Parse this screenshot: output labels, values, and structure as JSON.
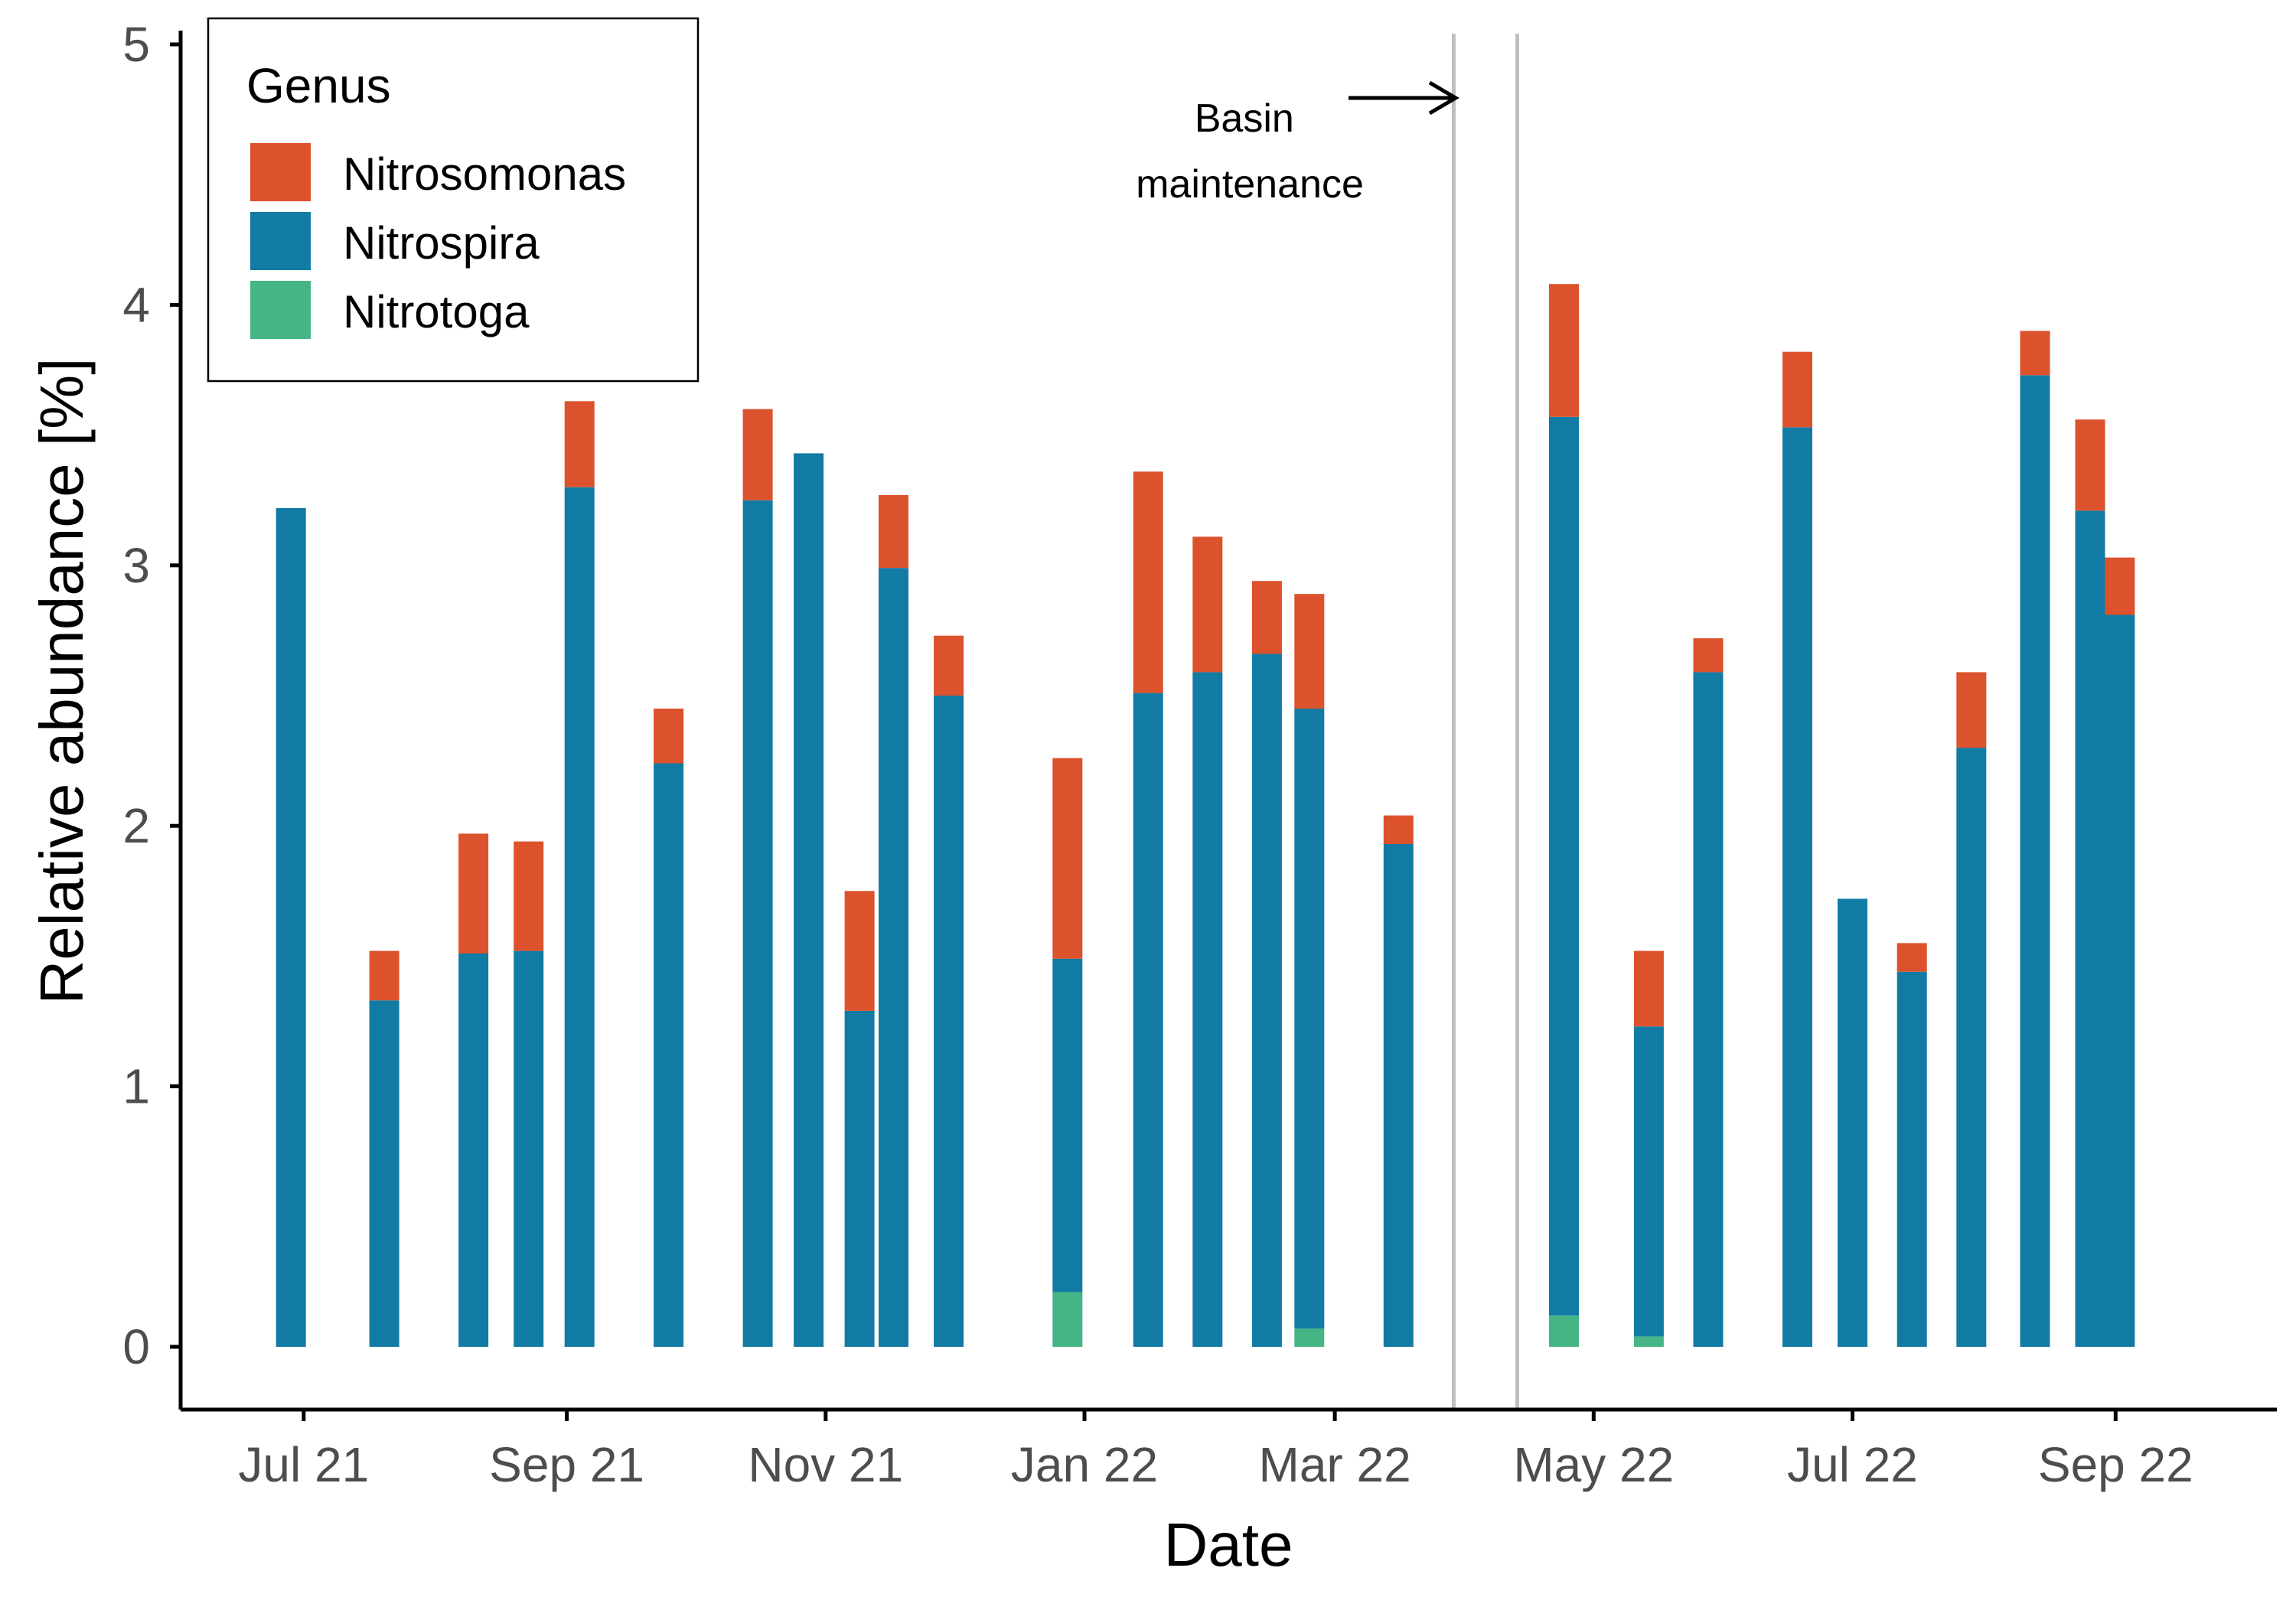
{
  "chart_data": {
    "type": "bar",
    "stacked": true,
    "xlabel": "Date",
    "ylabel": "Relative abundance [%]",
    "ylim": [
      0,
      5
    ],
    "yticks": [
      0,
      1,
      2,
      3,
      4,
      5
    ],
    "xlim": [
      "2021-06-02",
      "2022-10-09"
    ],
    "xticks": [
      {
        "date": "2021-07-01",
        "label": "Jul 21"
      },
      {
        "date": "2021-09-01",
        "label": "Sep 21"
      },
      {
        "date": "2021-11-01",
        "label": "Nov 21"
      },
      {
        "date": "2022-01-01",
        "label": "Jan 22"
      },
      {
        "date": "2022-03-01",
        "label": "Mar 22"
      },
      {
        "date": "2022-05-01",
        "label": "May 22"
      },
      {
        "date": "2022-07-01",
        "label": "Jul 22"
      },
      {
        "date": "2022-09-01",
        "label": "Sep 22"
      }
    ],
    "grid": false,
    "legend": {
      "title": "Genus",
      "position": "top-left",
      "entries": [
        "Nitrosomonas",
        "Nitrospira",
        "Nitrotoga"
      ]
    },
    "colors": {
      "Nitrosomonas": "#dc522c",
      "Nitrospira": "#127ba4",
      "Nitrotoga": "#45b585",
      "vline": "#bebebe"
    },
    "x": [
      "2021-06-28",
      "2021-07-20",
      "2021-08-10",
      "2021-08-23",
      "2021-09-04",
      "2021-09-25",
      "2021-10-16",
      "2021-10-28",
      "2021-11-09",
      "2021-11-17",
      "2021-11-30",
      "2021-12-14",
      "2021-12-28",
      "2022-01-16",
      "2022-01-30",
      "2022-02-13",
      "2022-02-23",
      "2022-03-16",
      "2022-04-24",
      "2022-05-14",
      "2022-05-28",
      "2022-06-18",
      "2022-07-01",
      "2022-07-15",
      "2022-07-29",
      "2022-08-13",
      "2022-08-26",
      "2022-09-02"
    ],
    "series": [
      {
        "name": "Nitrotoga",
        "values": [
          0,
          0,
          0,
          0,
          0,
          0,
          0,
          0,
          0,
          0,
          0,
          0,
          0.21,
          0,
          0,
          0,
          0.07,
          0,
          0.12,
          0.04,
          0,
          0,
          0,
          0,
          0,
          0,
          0,
          0
        ]
      },
      {
        "name": "Nitrospira",
        "values": [
          3.22,
          1.33,
          1.51,
          1.52,
          3.3,
          2.24,
          3.25,
          3.43,
          1.29,
          2.99,
          2.5,
          0,
          1.28,
          2.51,
          2.59,
          2.66,
          2.38,
          1.93,
          3.45,
          1.19,
          2.59,
          3.53,
          1.72,
          1.44,
          2.3,
          3.73,
          3.21,
          2.81
        ]
      },
      {
        "name": "Nitrosomonas",
        "values": [
          0,
          0.19,
          0.46,
          0.42,
          0.33,
          0.21,
          0.35,
          0,
          0.46,
          0.28,
          0.23,
          0,
          0.77,
          0.85,
          0.52,
          0.28,
          0.44,
          0.11,
          0.51,
          0.29,
          0.13,
          0.29,
          0,
          0.11,
          0.29,
          0.17,
          0.35,
          0.22
        ]
      }
    ],
    "vlines": [
      "2022-03-29",
      "2022-04-13"
    ],
    "annotations": [
      {
        "text_lines": [
          "Basin",
          "maintenance"
        ],
        "arrow_to": "vline-1"
      }
    ]
  }
}
